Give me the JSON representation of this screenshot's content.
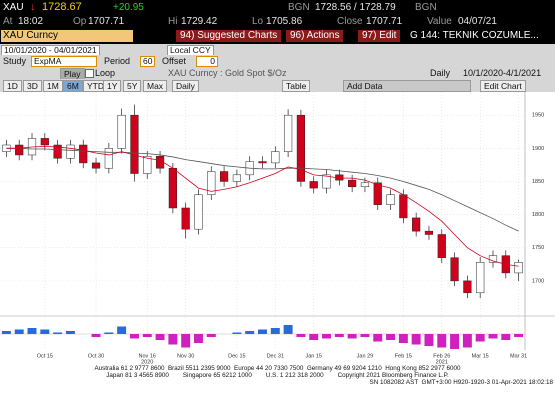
{
  "header": {
    "ticker": "XAU",
    "arrow": "↓",
    "last": "1728.67",
    "change": "+20.95",
    "source1": "BGN",
    "bid_ask": "1728.56 / 1728.79",
    "source2": "BGN",
    "at_label": "At",
    "at": "18:02",
    "op_label": "Op",
    "op": "1707.71",
    "hi_label": "Hi",
    "hi": "1729.42",
    "lo_label": "Lo",
    "lo": "1705.86",
    "close_label": "Close",
    "close": "1707.71",
    "value_label": "Value",
    "value": "04/07/21"
  },
  "toolbar": {
    "security": "XAU Curncy",
    "buttons": [
      "94) Suggested Charts",
      "96) Actions",
      "97) Edit"
    ],
    "page": "G 144: TEKNIK COZUMLE...",
    "date_range": "10/01/2020 - 04/01/2021",
    "currency": "Local CCY",
    "study_label": "Study",
    "study": "ExpMA",
    "period_label": "Period",
    "period": "60",
    "offset_label": "Offset",
    "offset": "0",
    "play": "Play",
    "loop": "Loop",
    "chart_title": "XAU Curncy : Gold Spot  $/Oz",
    "frequency": "Daily",
    "range": "10/1/2020-4/1/2021",
    "periods": [
      "1D",
      "3D",
      "1M",
      "6M",
      "YTD",
      "1Y",
      "5Y",
      "Max"
    ],
    "period_freq": "Daily",
    "table": "Table",
    "add_data": "Add Data",
    "edit_chart": "Edit Chart"
  },
  "chart_data": {
    "type": "candlestick",
    "up_color": "#ffffff",
    "down_color": "#d0021b",
    "grid": true,
    "open": [
      1895,
      1905,
      1890,
      1915,
      1905,
      1885,
      1905,
      1878,
      1870,
      1900,
      1950,
      1862,
      1888,
      1870,
      1810,
      1778,
      1830,
      1865,
      1850,
      1860,
      1880,
      1878,
      1895,
      1950,
      1850,
      1840,
      1860,
      1852,
      1842,
      1848,
      1815,
      1830,
      1795,
      1775,
      1770,
      1735,
      1700,
      1682,
      1728,
      1738,
      1712
    ],
    "high": [
      1913,
      1913,
      1923,
      1923,
      1913,
      1913,
      1913,
      1886,
      1908,
      1960,
      1966,
      1896,
      1896,
      1878,
      1818,
      1838,
      1873,
      1873,
      1868,
      1888,
      1888,
      1903,
      1959,
      1958,
      1858,
      1868,
      1868,
      1860,
      1856,
      1856,
      1838,
      1838,
      1803,
      1783,
      1778,
      1743,
      1708,
      1736,
      1746,
      1746,
      1732
    ],
    "low": [
      1887,
      1882,
      1882,
      1897,
      1877,
      1877,
      1870,
      1862,
      1862,
      1892,
      1850,
      1854,
      1862,
      1802,
      1764,
      1770,
      1822,
      1842,
      1842,
      1852,
      1870,
      1870,
      1887,
      1842,
      1832,
      1832,
      1844,
      1834,
      1834,
      1807,
      1807,
      1787,
      1767,
      1762,
      1727,
      1692,
      1674,
      1674,
      1720,
      1704,
      1700
    ],
    "close": [
      1905,
      1890,
      1915,
      1905,
      1885,
      1905,
      1878,
      1870,
      1900,
      1950,
      1862,
      1888,
      1870,
      1810,
      1778,
      1830,
      1865,
      1850,
      1860,
      1880,
      1878,
      1895,
      1950,
      1850,
      1840,
      1860,
      1852,
      1842,
      1848,
      1815,
      1830,
      1795,
      1775,
      1770,
      1735,
      1700,
      1682,
      1728,
      1738,
      1712,
      1728
    ],
    "ma_short": {
      "color": "#d0021b",
      "values": [
        1900,
        1900,
        1902,
        1903,
        1902,
        1900,
        1897,
        1893,
        1890,
        1895,
        1890,
        1885,
        1882,
        1870,
        1855,
        1840,
        1835,
        1838,
        1842,
        1848,
        1855,
        1862,
        1872,
        1868,
        1860,
        1858,
        1855,
        1855,
        1852,
        1845,
        1840,
        1830,
        1818,
        1805,
        1790,
        1770,
        1750,
        1738,
        1730,
        1725,
        1722
      ]
    },
    "ma_long": {
      "color": "#555555",
      "values": [
        1900,
        1900,
        1899,
        1899,
        1898,
        1897,
        1896,
        1895,
        1894,
        1894,
        1893,
        1892,
        1890,
        1887,
        1883,
        1880,
        1877,
        1874,
        1872,
        1870,
        1869,
        1869,
        1870,
        1870,
        1869,
        1868,
        1866,
        1864,
        1862,
        1859,
        1855,
        1850,
        1844,
        1838,
        1830,
        1821,
        1812,
        1803,
        1794,
        1784,
        1775
      ]
    },
    "ylim": [
      1650,
      1985
    ],
    "yticks": [
      1700,
      1750,
      1800,
      1850,
      1900,
      1950
    ],
    "xticks": [
      {
        "value": 3,
        "label": "Oct 15"
      },
      {
        "value": 7,
        "label": "Oct 30"
      },
      {
        "value": 11,
        "label": "Nov 16"
      },
      {
        "value": 14,
        "label": "Nov 30"
      },
      {
        "value": 18,
        "label": "Dec 15"
      },
      {
        "value": 21,
        "label": "Dec 31"
      },
      {
        "value": 24,
        "label": "Jan 15"
      },
      {
        "value": 28,
        "label": "Jan 29"
      },
      {
        "value": 31,
        "label": "Feb 15"
      },
      {
        "value": 34,
        "label": "Feb 26"
      },
      {
        "value": 37,
        "label": "Mar 15"
      },
      {
        "value": 40,
        "label": "Mar 31"
      }
    ],
    "year_labels": [
      {
        "value": 11,
        "label": "2020"
      },
      {
        "value": 34,
        "label": "2021"
      }
    ],
    "indicator": {
      "pos_color": "#2a6ad8",
      "neg_color": "#d020c0",
      "ylim": [
        -10,
        10
      ],
      "values": [
        2,
        3,
        4,
        3,
        1,
        2,
        0,
        -2,
        1,
        5,
        -3,
        -2,
        -4,
        -7,
        -9,
        -6,
        -2,
        0,
        1,
        2,
        3,
        4,
        6,
        -2,
        -4,
        -3,
        -2,
        -3,
        -2,
        -5,
        -4,
        -6,
        -7,
        -8,
        -9,
        -10,
        -9,
        -5,
        -3,
        -4,
        -2
      ]
    }
  },
  "footer": {
    "lines": [
      "Australia 61 2 9777 8600  Brazil 5511 2395 9000  Europe 44 20 7330 7500  Germany 49 69 9204 1210  Hong Kong 852 2977 6000",
      "Japan 81 3 4565 8900        Singapore 65 6212 1000        U.S. 1 212 318 2000        Copyright 2021 Bloomberg Finance L.P.",
      "SN 1082082 AST  GMT+3:00 H920-1920-3 01-Apr-2021 18:02:18"
    ]
  }
}
